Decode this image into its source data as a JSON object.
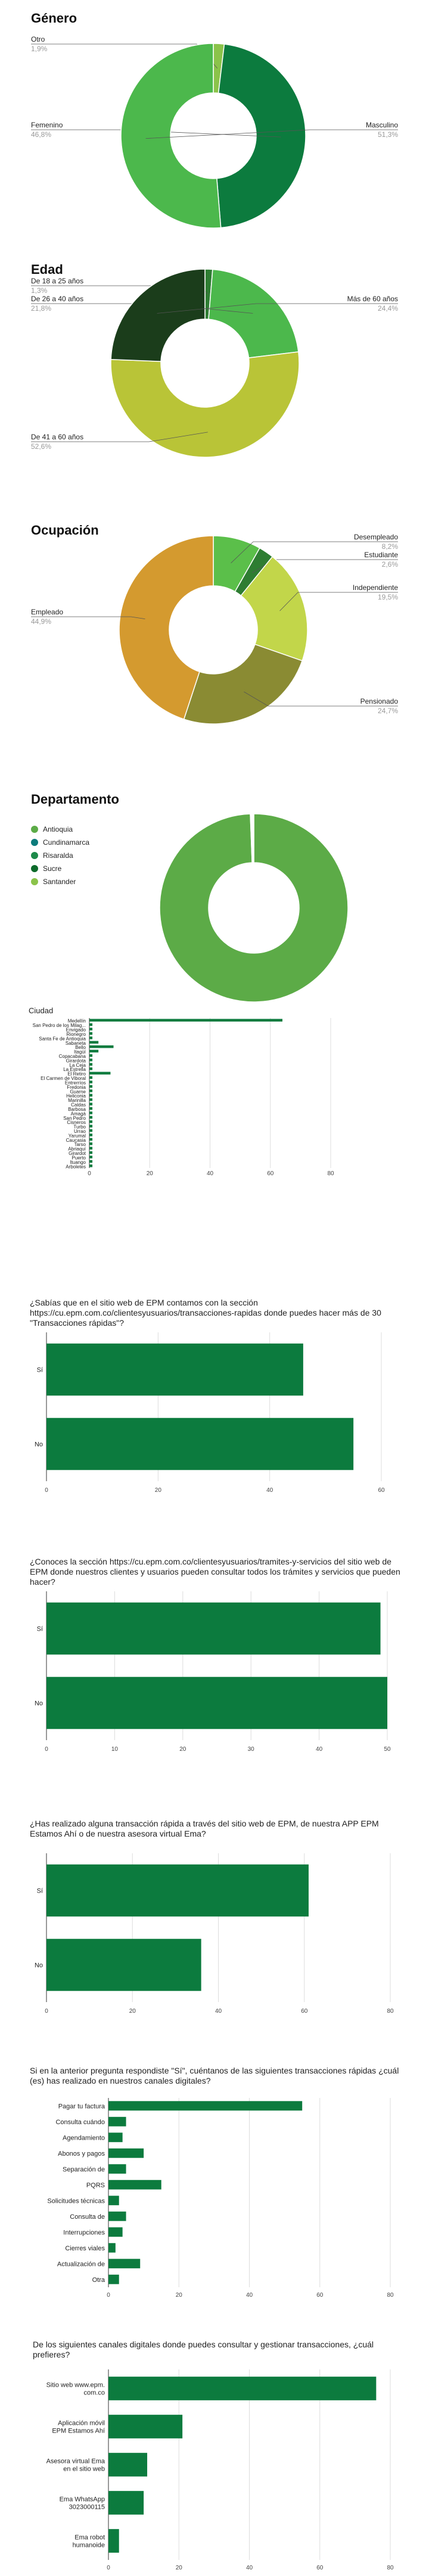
{
  "genero": {
    "title": "Género",
    "chart_data": {
      "type": "pie",
      "title": "Género",
      "labels": [
        "Otro",
        "Femenino",
        "Masculino"
      ],
      "values": [
        1.9,
        46.8,
        51.3
      ],
      "display": [
        "1,9%",
        "46,8%",
        "51,3%"
      ],
      "colors": [
        "#8bc34a",
        "#0c7b3e",
        "#4cb84c"
      ]
    }
  },
  "edad": {
    "title": "Edad",
    "chart_data": {
      "type": "pie",
      "title": "Edad",
      "labels": [
        "De 18 a 25 años",
        "De 26 a 40 años",
        "De 41 a 60 años",
        "Más de 60 años"
      ],
      "values": [
        1.3,
        21.8,
        52.6,
        24.4
      ],
      "display": [
        "1,3%",
        "21,8%",
        "52,6%",
        "24,4%"
      ],
      "colors": [
        "#2e7d32",
        "#4cb84c",
        "#b9c437",
        "#1b3d1b"
      ]
    }
  },
  "ocupacion": {
    "title": "Ocupación",
    "chart_data": {
      "type": "pie",
      "title": "Ocupación",
      "labels": [
        "Desempleado",
        "Estudiante",
        "Independiente",
        "Pensionado",
        "Empleado"
      ],
      "values": [
        8.2,
        2.6,
        19.5,
        24.7,
        44.9
      ],
      "display": [
        "8,2%",
        "2,6%",
        "19,5%",
        "24,7%",
        "44,9%"
      ],
      "colors": [
        "#5bbf4a",
        "#2e7d32",
        "#c2d64a",
        "#8a8b33",
        "#d49a2f"
      ]
    }
  },
  "departamento": {
    "title": "Departamento",
    "chart_data": {
      "type": "pie",
      "title": "Departamento",
      "labels": [
        "Antioquia",
        "Cundinamarca",
        "Risaralda",
        "Sucre",
        "Santander"
      ],
      "values": [
        99.4,
        0.15,
        0.15,
        0.15,
        0.15
      ],
      "colors": [
        "#5cab47",
        "#0c7b7b",
        "#1e8a4a",
        "#0d6b2b",
        "#8bc34a"
      ]
    }
  },
  "ciudad": {
    "title": "Ciudad",
    "chart_data": {
      "type": "bar",
      "orientation": "horizontal",
      "title": "Ciudad",
      "categories": [
        "Medellín",
        "San Pedro de los Milag...",
        "Envigado",
        "Rionegro",
        "Santa Fe de Antioquia",
        "Sabaneta",
        "Bello",
        "Itagüí",
        "Copacabana",
        "Girardota",
        "La Ceja",
        "La Estrella",
        "El Retiro",
        "El Carmen de Viboral",
        "Entrerríos",
        "Fredonia",
        "Guarne",
        "Heliconia",
        "Marinilla",
        "Caldas",
        "Barbosa",
        "Amagá",
        "San Pedro",
        "Cisneros",
        "Turbo",
        "Urrao",
        "Yarumal",
        "Caucasia",
        "Tarso",
        "Abriaquí",
        "Girardot",
        "Puerto",
        "Ituango",
        "Arboletes"
      ],
      "values": [
        64,
        1,
        1,
        1,
        1,
        3,
        8,
        3,
        1,
        1,
        1,
        1,
        7,
        1,
        1,
        1,
        1,
        1,
        1,
        1,
        1,
        1,
        1,
        1,
        1,
        1,
        1,
        1,
        1,
        1,
        1,
        1,
        1,
        1
      ],
      "xlim": [
        0,
        80
      ],
      "xticks": [
        0,
        20,
        40,
        60,
        80
      ],
      "color": "#0c7b3e"
    }
  },
  "sabias": {
    "title": "¿Sabías que en el sitio web de EPM contamos con la sección https://cu.epm.com.co/clientesyusuarios/transacciones-rapidas donde puedes hacer más de 30 \"Transacciones rápidas\"?",
    "chart_data": {
      "type": "bar",
      "orientation": "horizontal",
      "categories": [
        "Sí",
        "No"
      ],
      "values": [
        46,
        55
      ],
      "xlim": [
        0,
        60
      ],
      "xticks": [
        0,
        20,
        40,
        60
      ],
      "color": "#0c7b3e"
    }
  },
  "conoces": {
    "title": "¿Conoces la sección https://cu.epm.com.co/clientesyusuarios/tramites-y-servicios del sitio web de EPM donde nuestros clientes y usuarios pueden consultar todos los trámites y servicios que pueden hacer?",
    "chart_data": {
      "type": "bar",
      "orientation": "horizontal",
      "categories": [
        "Sí",
        "No"
      ],
      "values": [
        49,
        50
      ],
      "xlim": [
        0,
        50
      ],
      "xticks": [
        0,
        10,
        20,
        30,
        40,
        50
      ],
      "color": "#0c7b3e"
    }
  },
  "hasrealizado": {
    "title": "¿Has realizado alguna transacción rápida a través del sitio web de EPM, de nuestra APP EPM Estamos Ahí o de nuestra asesora virtual Ema?",
    "chart_data": {
      "type": "bar",
      "orientation": "horizontal",
      "categories": [
        "Sí",
        "No"
      ],
      "values": [
        61,
        36
      ],
      "xlim": [
        0,
        80
      ],
      "xticks": [
        0,
        20,
        40,
        60,
        80
      ],
      "color": "#0c7b3e"
    }
  },
  "transacciones": {
    "title": "Si en la anterior pregunta respondiste \"Sí\", cuéntanos de las siguientes transacciones rápidas ¿cuál (es) has realizado en nuestros canales digitales?",
    "chart_data": {
      "type": "bar",
      "orientation": "horizontal",
      "categories": [
        "Pagar tu factura",
        "Consulta cuándo",
        "Agendamiento",
        "Abonos y pagos",
        "Separación de",
        "PQRS",
        "Solicitudes técnicas",
        "Consulta de",
        "Interrupciones",
        "Cierres viales",
        "Actualización de",
        "Otra"
      ],
      "values": [
        55,
        5,
        4,
        10,
        5,
        15,
        3,
        5,
        4,
        2,
        9,
        3
      ],
      "xlim": [
        0,
        80
      ],
      "xticks": [
        0,
        20,
        40,
        60,
        80
      ],
      "color": "#0c7b3e"
    }
  },
  "canales": {
    "title": "De los siguientes canales digitales donde puedes consultar y gestionar transacciones, ¿cuál prefieres?",
    "chart_data": {
      "type": "bar",
      "orientation": "horizontal",
      "categories": [
        "Sitio web www.epm.\ncom.co",
        "Aplicación móvil\nEPM Estamos Ahí",
        "Asesora virtual Ema\nen el sitio web",
        "Ema WhatsApp\n3023000115",
        "Ema robot\nhumanoide"
      ],
      "values": [
        76,
        21,
        11,
        10,
        3
      ],
      "xlim": [
        0,
        80
      ],
      "xticks": [
        0,
        20,
        40,
        60,
        80
      ],
      "color": "#0c7b3e"
    }
  }
}
